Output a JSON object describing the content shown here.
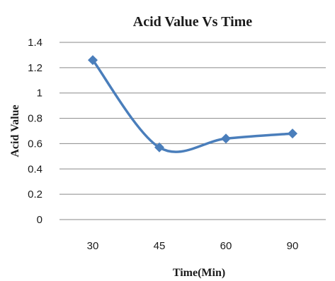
{
  "chart_data": {
    "type": "line",
    "title": "Acid Value Vs Time",
    "xlabel": "Time(Min)",
    "ylabel": "Acid Value",
    "categories": [
      "30",
      "45",
      "60",
      "90"
    ],
    "series": [
      {
        "values": [
          1.26,
          0.57,
          0.64,
          0.68
        ],
        "color": "#4a7ebb"
      }
    ],
    "ylim": [
      0,
      1.4
    ],
    "yticks": [
      "0",
      "0.2",
      "0.4",
      "0.6",
      "0.8",
      "1",
      "1.2",
      "1.4"
    ],
    "grid": true,
    "smooth": true,
    "marker": "diamond"
  }
}
